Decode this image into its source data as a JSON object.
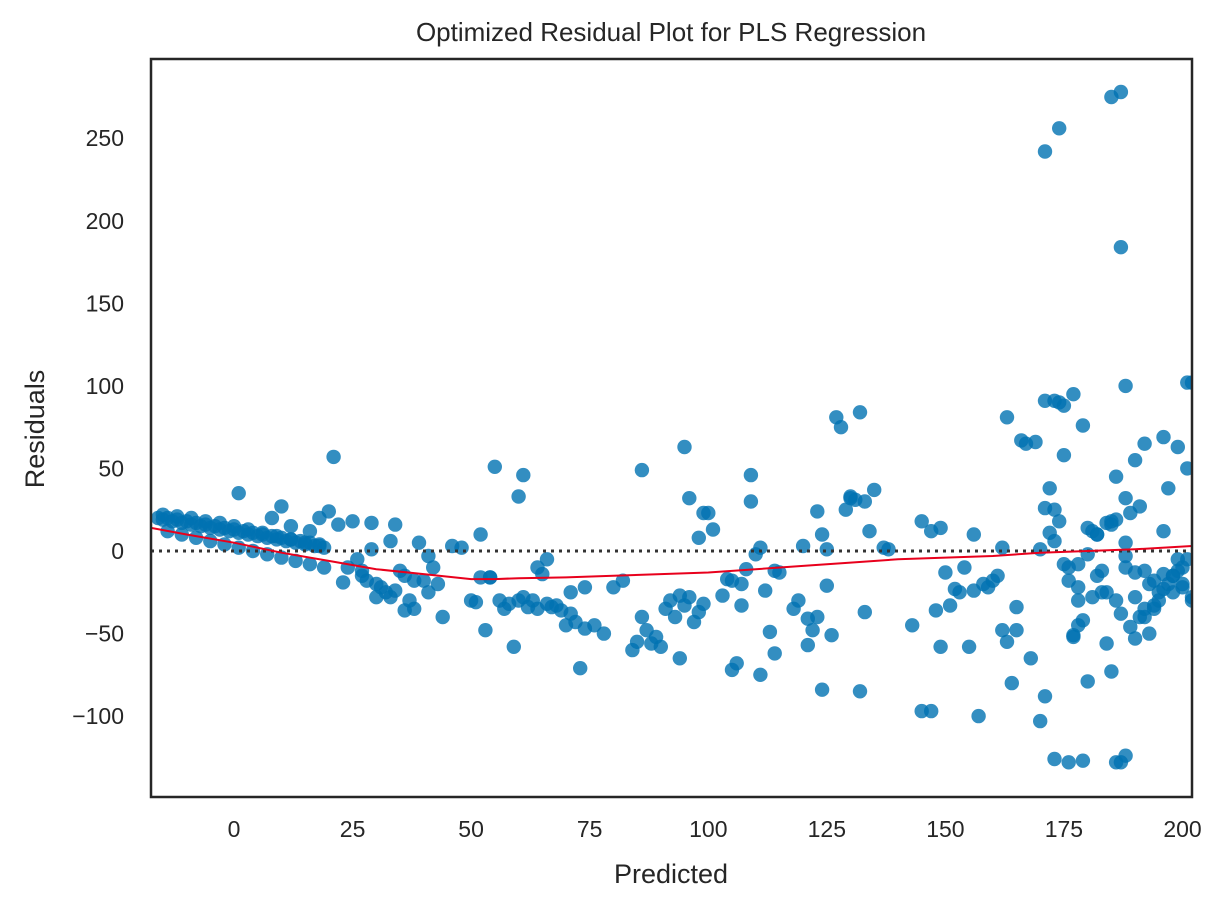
{
  "chart_data": {
    "type": "scatter",
    "title": "Optimized Residual Plot for PLS Regression",
    "xlabel": "Predicted",
    "ylabel": "Residuals",
    "xlim": [
      -17.5,
      202
    ],
    "ylim": [
      -149,
      298
    ],
    "xticks": [
      0,
      25,
      50,
      75,
      100,
      125,
      150,
      175,
      200
    ],
    "xtick_labels": [
      "0",
      "25",
      "50",
      "75",
      "100",
      "125",
      "150",
      "175",
      "200"
    ],
    "yticks": [
      -100,
      -50,
      0,
      50,
      100,
      150,
      200,
      250
    ],
    "ytick_labels": [
      "−100",
      "−50",
      "0",
      "50",
      "100",
      "150",
      "200",
      "250"
    ],
    "grid": false,
    "legend": "none",
    "colors": {
      "points": "#0072b2",
      "smoother": "#e8001c",
      "zero_line": "#333333",
      "axes": "#262626"
    },
    "reference_line": {
      "y": 0,
      "style": "dotted"
    },
    "smoother": {
      "x": [
        -17.5,
        -10,
        0,
        10,
        20,
        30,
        40,
        50,
        55,
        60,
        70,
        80,
        90,
        100,
        110,
        120,
        130,
        140,
        150,
        160,
        170,
        180,
        190,
        202
      ],
      "y": [
        14,
        10,
        5,
        -1,
        -6,
        -11,
        -14,
        -17,
        -17,
        -16.5,
        -16,
        -15,
        -14,
        -13,
        -11,
        -9,
        -7,
        -5,
        -4,
        -3,
        -1,
        0,
        1,
        3
      ]
    },
    "points": {
      "x": [
        -16,
        -15,
        -14,
        -13,
        -12,
        -11,
        -10,
        -9,
        -8,
        -7,
        -6,
        -5,
        -4,
        -3,
        -2,
        -1,
        0,
        1,
        2,
        3,
        4,
        5,
        6,
        7,
        8,
        9,
        10,
        11,
        12,
        13,
        14,
        15,
        16,
        17,
        18,
        19,
        -15,
        -12,
        -9,
        -6,
        -3,
        0,
        3,
        6,
        9,
        12,
        15,
        18,
        -14,
        -11,
        -8,
        -5,
        -2,
        1,
        4,
        7,
        10,
        13,
        16,
        19,
        1,
        10,
        8,
        12,
        16,
        18,
        20,
        21,
        22,
        23,
        24,
        25,
        26,
        27,
        28,
        29,
        30,
        31,
        32,
        33,
        34,
        35,
        36,
        37,
        38,
        39,
        40,
        41,
        42,
        43,
        44,
        27,
        30,
        33,
        36,
        38,
        41,
        34,
        29,
        46,
        48,
        50,
        51,
        52,
        53,
        54,
        55,
        56,
        57,
        58,
        59,
        60,
        61,
        62,
        63,
        64,
        65,
        66,
        67,
        68,
        69,
        70,
        71,
        72,
        73,
        74,
        52,
        54,
        60,
        61,
        64,
        66,
        71,
        74,
        76,
        78,
        80,
        82,
        84,
        85,
        86,
        87,
        88,
        89,
        90,
        91,
        92,
        93,
        94,
        95,
        96,
        97,
        98,
        99,
        86,
        95,
        96,
        98,
        100,
        101,
        103,
        104,
        105,
        106,
        107,
        108,
        109,
        110,
        111,
        112,
        113,
        114,
        115,
        94,
        99,
        105,
        107,
        109,
        111,
        114,
        118,
        119,
        120,
        121,
        122,
        123,
        124,
        125,
        126,
        127,
        128,
        129,
        130,
        131,
        132,
        133,
        134,
        135,
        137,
        138,
        121,
        123,
        124,
        125,
        130,
        132,
        133,
        143,
        145,
        147,
        148,
        149,
        150,
        151,
        152,
        153,
        154,
        155,
        156,
        157,
        158,
        159,
        160,
        161,
        162,
        163,
        164,
        165,
        145,
        147,
        149,
        156,
        162,
        163,
        165,
        167,
        170,
        166,
        168,
        169,
        171,
        172,
        173,
        174,
        175,
        176,
        177,
        178,
        179,
        180,
        181,
        182,
        183,
        184,
        185,
        186,
        187,
        188,
        189,
        190,
        191,
        192,
        193,
        194,
        195,
        196,
        197,
        198,
        199,
        200,
        201,
        202,
        170,
        172,
        174,
        176,
        178,
        180,
        182,
        184,
        186,
        188,
        190,
        192,
        194,
        196,
        198,
        200,
        202,
        171,
        174,
        185,
        187,
        187,
        188,
        171,
        173,
        177,
        179,
        186,
        188,
        190,
        192,
        196,
        199,
        201,
        202,
        171,
        173,
        175,
        178,
        185,
        188,
        173,
        176,
        178,
        180,
        182,
        184,
        186,
        188,
        190,
        192,
        194,
        196,
        198,
        200,
        175,
        177,
        179,
        181,
        183,
        185,
        187,
        189,
        191,
        193,
        195,
        197,
        199,
        201
      ],
      "y": [
        20,
        19,
        20,
        18,
        19,
        17,
        18,
        16,
        17,
        15,
        16,
        14,
        15,
        13,
        14,
        12,
        13,
        11,
        12,
        10,
        11,
        9,
        10,
        8,
        9,
        7,
        8,
        6,
        7,
        5,
        6,
        4,
        5,
        3,
        4,
        2,
        22,
        21,
        20,
        18,
        17,
        15,
        13,
        11,
        9,
        7,
        5,
        3,
        12,
        10,
        8,
        6,
        4,
        2,
        0,
        -2,
        -4,
        -6,
        -8,
        -10,
        35,
        27,
        20,
        15,
        12,
        20,
        24,
        57,
        16,
        -19,
        -10,
        18,
        -5,
        -15,
        -18,
        17,
        -20,
        -22,
        -25,
        -28,
        16,
        -12,
        -15,
        -30,
        -35,
        5,
        -18,
        -25,
        -10,
        -20,
        -40,
        -12,
        -28,
        6,
        -36,
        -18,
        -3,
        -24,
        1,
        3,
        2,
        -30,
        -31,
        10,
        -48,
        -16,
        51,
        -30,
        -35,
        -32,
        -58,
        -30,
        -28,
        -34,
        -30,
        -35,
        -14,
        -32,
        -34,
        -33,
        -36,
        -45,
        -38,
        -43,
        -71,
        -47,
        -16,
        -16,
        33,
        46,
        -10,
        -5,
        -25,
        -22,
        -45,
        -50,
        -22,
        -18,
        -60,
        -55,
        -40,
        -48,
        -56,
        -52,
        -58,
        -35,
        -30,
        -40,
        -65,
        -33,
        -28,
        -43,
        -37,
        -32,
        49,
        63,
        32,
        8,
        23,
        13,
        -27,
        -17,
        -18,
        -68,
        -33,
        -11,
        46,
        -2,
        -75,
        -24,
        -49,
        -12,
        -13,
        -27,
        23,
        -72,
        -20,
        30,
        2,
        -62,
        -35,
        -30,
        3,
        -41,
        -48,
        24,
        -84,
        -21,
        -51,
        81,
        75,
        25,
        33,
        31,
        -85,
        30,
        12,
        37,
        2,
        1,
        -57,
        -40,
        10,
        1,
        32,
        84,
        -37,
        -45,
        -97,
        -97,
        -36,
        14,
        -13,
        -33,
        -23,
        -25,
        -10,
        -58,
        -24,
        -100,
        -20,
        -22,
        -18,
        -15,
        2,
        -55,
        -80,
        -48,
        18,
        12,
        -58,
        10,
        -48,
        81,
        -34,
        65,
        -103,
        67,
        -65,
        66,
        -88,
        38,
        -126,
        90,
        88,
        -128,
        -51,
        -45,
        -127,
        -79,
        12,
        -15,
        -25,
        -56,
        -73,
        -128,
        -128,
        -124,
        -46,
        -53,
        -40,
        -35,
        -50,
        -33,
        -30,
        -23,
        -20,
        -15,
        -12,
        -10,
        -5,
        -28,
        1,
        11,
        18,
        -18,
        -8,
        14,
        10,
        17,
        19,
        -3,
        -13,
        -12,
        -18,
        -14,
        -25,
        -20,
        -30,
        242,
        256,
        275,
        278,
        184,
        100,
        91,
        91,
        95,
        76,
        45,
        32,
        55,
        65,
        69,
        63,
        102,
        102,
        26,
        6,
        -8,
        -30,
        16,
        -10,
        25,
        -10,
        -22,
        -2,
        10,
        -25,
        -30,
        5,
        -28,
        -40,
        -35,
        12,
        -15,
        -22,
        58,
        -52,
        -42,
        -28,
        -12,
        18,
        -38,
        23,
        27,
        -20,
        -25,
        38,
        -5,
        50
      ]
    }
  }
}
